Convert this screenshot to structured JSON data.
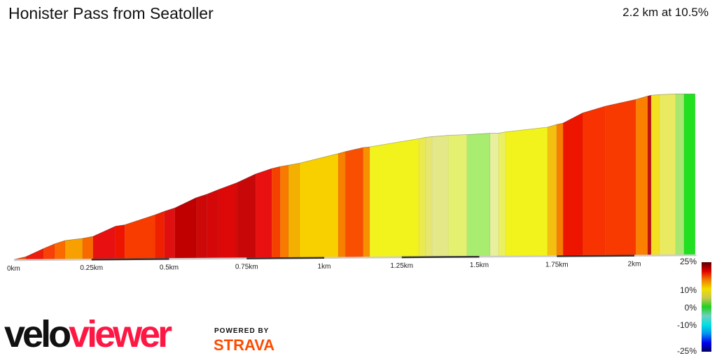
{
  "header": {
    "title": "Honister Pass from Seatoller",
    "summary": "2.2 km at 10.5%"
  },
  "chart_data": {
    "type": "area",
    "title": "Honister Pass from Seatoller",
    "xlabel": "",
    "ylabel": "",
    "x_unit": "km",
    "xlim": [
      0,
      2.2
    ],
    "x_ticks": [
      "0km",
      "0.25km",
      "0.5km",
      "0.75km",
      "1km",
      "1.25km",
      "1.5km",
      "1.75km",
      "2km"
    ],
    "boundaries_km": [
      0,
      0.038,
      0.095,
      0.131,
      0.165,
      0.221,
      0.255,
      0.327,
      0.357,
      0.456,
      0.485,
      0.519,
      0.587,
      0.621,
      0.659,
      0.718,
      0.779,
      0.831,
      0.858,
      0.885,
      0.921,
      1.045,
      1.068,
      1.126,
      1.147,
      1.305,
      1.327,
      1.348,
      1.4,
      1.46,
      1.535,
      1.562,
      1.585,
      1.72,
      1.749,
      1.77,
      1.833,
      1.907,
      2.005,
      2.043,
      2.054,
      2.081,
      2.133,
      2.16,
      2.196
    ],
    "elevation_gain_m": [
      0,
      4,
      16,
      23,
      28,
      31,
      34,
      49,
      51,
      66,
      71,
      76,
      91,
      96,
      103,
      113,
      126,
      134,
      137,
      139,
      142,
      156,
      159,
      165,
      166,
      178,
      180,
      181,
      183,
      184,
      186,
      186,
      188,
      195,
      199,
      201,
      216,
      226,
      236,
      241,
      242,
      243,
      244,
      244,
      244
    ],
    "segment_colors": [
      "#f44a00",
      "#ee1c0a",
      "#f84008",
      "#fb6a00",
      "#f7a000",
      "#f86a00",
      "#e81010",
      "#ee1500",
      "#f83c00",
      "#ee2000",
      "#e01010",
      "#c00000",
      "#cc0808",
      "#d40808",
      "#dd0808",
      "#c80808",
      "#e81010",
      "#f54000",
      "#f87a00",
      "#f4b000",
      "#f8d000",
      "#f88000",
      "#f85000",
      "#f89000",
      "#f2f21c",
      "#eaea50",
      "#e6e670",
      "#e4e888",
      "#e4f070",
      "#a8ec70",
      "#e8f0a0",
      "#eaf060",
      "#f2f21c",
      "#f4c010",
      "#f88000",
      "#ee1500",
      "#f83200",
      "#f83a00",
      "#fb8000",
      "#c01010",
      "#f4e020",
      "#eaea60",
      "#a8e870",
      "#20e020"
    ],
    "gradient_legend": {
      "labels": [
        "25%",
        "10%",
        "0%",
        "-10%",
        "-25%"
      ],
      "values": [
        25,
        10,
        0,
        -10,
        -25
      ],
      "colors": [
        "#5a0000",
        "#e00000",
        "#f08000",
        "#f0e000",
        "#c8c850",
        "#20d020",
        "#70d0c0",
        "#00e0e0",
        "#0090f0",
        "#0000f0",
        "#000060"
      ]
    }
  },
  "branding": {
    "logo_part1": "velo",
    "logo_part2": "viewer",
    "powered_by": "POWERED BY",
    "strava": "STRAVA"
  }
}
